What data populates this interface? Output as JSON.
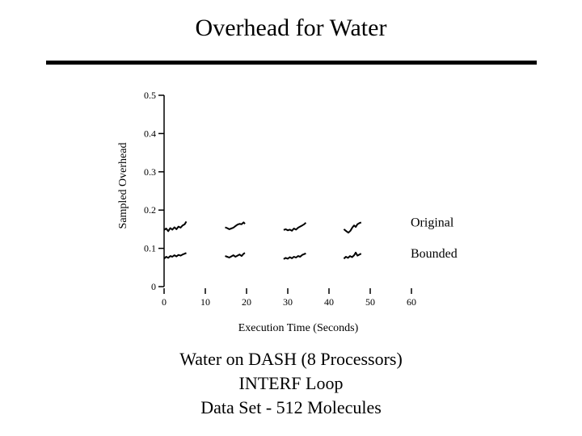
{
  "slide": {
    "title": "Overhead for Water",
    "caption_lines": [
      "Water on DASH (8 Processors)",
      "INTERF Loop",
      "Data Set - 512 Molecules"
    ]
  },
  "chart_data": {
    "type": "line",
    "title": "",
    "xlabel": "Execution Time (Seconds)",
    "ylabel": "Sampled Overhead",
    "xlim": [
      0,
      60
    ],
    "ylim": [
      0,
      0.5
    ],
    "xticks": [
      "0",
      "10",
      "20",
      "30",
      "40",
      "50",
      "60"
    ],
    "yticks": [
      "0",
      "0.1",
      "0.2",
      "0.3",
      "0.4",
      "0.5"
    ],
    "grid": false,
    "legend": "direct labels at right",
    "color": "#000000",
    "series": [
      {
        "name": "Original",
        "segments": [
          [
            [
              0,
              0.148
            ],
            [
              0.5,
              0.152
            ],
            [
              1,
              0.145
            ],
            [
              1.5,
              0.153
            ],
            [
              2,
              0.149
            ],
            [
              2.5,
              0.155
            ],
            [
              3,
              0.15
            ],
            [
              3.5,
              0.157
            ],
            [
              4,
              0.154
            ],
            [
              4.5,
              0.16
            ],
            [
              5,
              0.163
            ],
            [
              5.4,
              0.17
            ]
          ],
          [
            [
              14.8,
              0.155
            ],
            [
              15.3,
              0.153
            ],
            [
              15.8,
              0.15
            ],
            [
              16.3,
              0.152
            ],
            [
              16.8,
              0.154
            ],
            [
              17.3,
              0.158
            ],
            [
              17.8,
              0.162
            ],
            [
              18.3,
              0.164
            ],
            [
              18.8,
              0.163
            ],
            [
              19.3,
              0.168
            ],
            [
              19.6,
              0.164
            ]
          ],
          [
            [
              29.0,
              0.148
            ],
            [
              29.5,
              0.15
            ],
            [
              30,
              0.147
            ],
            [
              30.5,
              0.149
            ],
            [
              31,
              0.146
            ],
            [
              31.5,
              0.152
            ],
            [
              32,
              0.149
            ],
            [
              32.5,
              0.154
            ],
            [
              33,
              0.157
            ],
            [
              33.5,
              0.16
            ],
            [
              34,
              0.163
            ],
            [
              34.4,
              0.167
            ]
          ],
          [
            [
              43.6,
              0.15
            ],
            [
              44.2,
              0.145
            ],
            [
              44.7,
              0.141
            ],
            [
              45.2,
              0.146
            ],
            [
              45.7,
              0.155
            ],
            [
              46.1,
              0.16
            ],
            [
              46.5,
              0.156
            ],
            [
              46.9,
              0.163
            ],
            [
              47.4,
              0.166
            ],
            [
              47.8,
              0.168
            ]
          ]
        ]
      },
      {
        "name": "Bounded",
        "segments": [
          [
            [
              0,
              0.073
            ],
            [
              0.5,
              0.078
            ],
            [
              1,
              0.075
            ],
            [
              1.5,
              0.08
            ],
            [
              2,
              0.078
            ],
            [
              2.5,
              0.082
            ],
            [
              3,
              0.079
            ],
            [
              3.5,
              0.083
            ],
            [
              4,
              0.081
            ],
            [
              4.5,
              0.084
            ],
            [
              5,
              0.086
            ],
            [
              5.4,
              0.088
            ]
          ],
          [
            [
              14.8,
              0.08
            ],
            [
              15.3,
              0.078
            ],
            [
              15.8,
              0.076
            ],
            [
              16.3,
              0.079
            ],
            [
              16.8,
              0.082
            ],
            [
              17.3,
              0.078
            ],
            [
              17.8,
              0.081
            ],
            [
              18.3,
              0.084
            ],
            [
              18.8,
              0.08
            ],
            [
              19.3,
              0.086
            ],
            [
              19.6,
              0.088
            ]
          ],
          [
            [
              29.0,
              0.072
            ],
            [
              29.5,
              0.075
            ],
            [
              30,
              0.073
            ],
            [
              30.5,
              0.077
            ],
            [
              31,
              0.074
            ],
            [
              31.5,
              0.078
            ],
            [
              32,
              0.076
            ],
            [
              32.5,
              0.08
            ],
            [
              33,
              0.078
            ],
            [
              33.5,
              0.083
            ],
            [
              34,
              0.085
            ],
            [
              34.4,
              0.087
            ]
          ],
          [
            [
              43.6,
              0.073
            ],
            [
              44.1,
              0.078
            ],
            [
              44.6,
              0.075
            ],
            [
              45.1,
              0.08
            ],
            [
              45.6,
              0.077
            ],
            [
              46.1,
              0.082
            ],
            [
              46.5,
              0.089
            ],
            [
              46.9,
              0.081
            ],
            [
              47.4,
              0.084
            ],
            [
              47.8,
              0.086
            ]
          ]
        ]
      }
    ]
  }
}
